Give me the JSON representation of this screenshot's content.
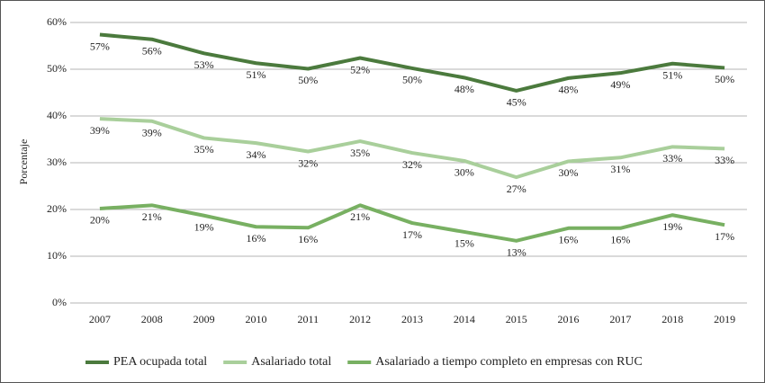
{
  "chart_data": {
    "type": "line",
    "y_label": "Porcentaje",
    "categories": [
      "2007",
      "2008",
      "2009",
      "2010",
      "2011",
      "2012",
      "2013",
      "2014",
      "2015",
      "2016",
      "2017",
      "2018",
      "2019"
    ],
    "ylim": [
      0,
      60
    ],
    "yticks": [
      {
        "value": 0,
        "label": "0%"
      },
      {
        "value": 10,
        "label": "10%"
      },
      {
        "value": 20,
        "label": "20%"
      },
      {
        "value": 30,
        "label": "30%"
      },
      {
        "value": 40,
        "label": "40%"
      },
      {
        "value": 50,
        "label": "50%"
      },
      {
        "value": 60,
        "label": "60%"
      }
    ],
    "grid": true,
    "legend": "bottom",
    "series": [
      {
        "name": "PEA ocupada total",
        "color": "#4b7a3d",
        "values": [
          57.4,
          56.4,
          53.4,
          51.3,
          50.1,
          52.4,
          50.2,
          48.2,
          45.4,
          48.1,
          49.2,
          51.2,
          50.3
        ],
        "value_labels": [
          "57%",
          "56%",
          "53%",
          "51%",
          "50%",
          "52%",
          "50%",
          "48%",
          "45%",
          "48%",
          "49%",
          "51%",
          "50%"
        ]
      },
      {
        "name": "Asalariado total",
        "color": "#a9cf9b",
        "values": [
          39.4,
          38.9,
          35.3,
          34.2,
          32.4,
          34.6,
          32.1,
          30.4,
          26.9,
          30.3,
          31.1,
          33.4,
          33.0
        ],
        "value_labels": [
          "39%",
          "39%",
          "35%",
          "34%",
          "32%",
          "35%",
          "32%",
          "30%",
          "27%",
          "30%",
          "31%",
          "33%",
          "33%"
        ]
      },
      {
        "name": "Asalariado a tiempo completo en empresas con RUC",
        "color": "#78b062",
        "values": [
          20.2,
          20.9,
          18.7,
          16.3,
          16.1,
          20.9,
          17.1,
          15.2,
          13.3,
          16.0,
          16.0,
          18.8,
          16.7
        ],
        "value_labels": [
          "20%",
          "21%",
          "19%",
          "16%",
          "16%",
          "21%",
          "17%",
          "15%",
          "13%",
          "16%",
          "16%",
          "19%",
          "17%"
        ]
      }
    ]
  }
}
